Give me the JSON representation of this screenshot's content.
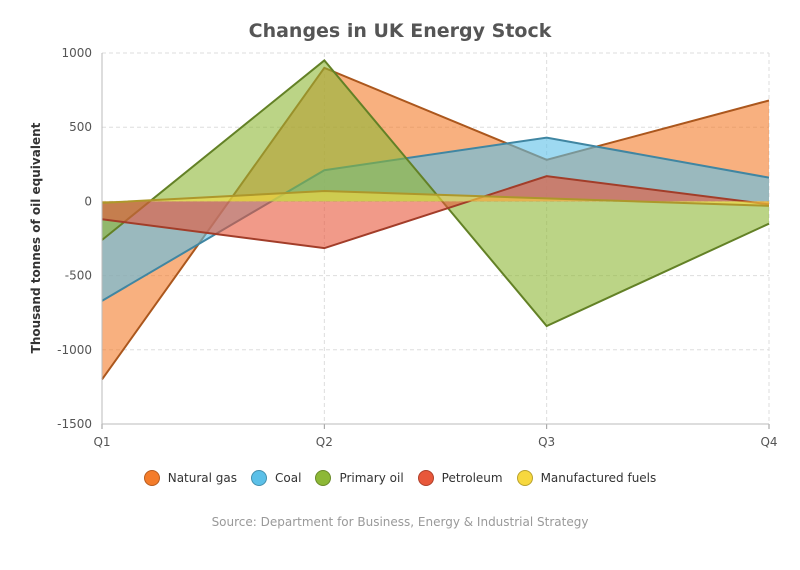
{
  "chart_data": {
    "type": "area",
    "title": "Changes in UK Energy Stock",
    "ylabel": "Thousand tonnes of oil equivalent",
    "xlabel": "",
    "categories": [
      "Q1",
      "Q2",
      "Q3",
      "Q4"
    ],
    "ylim": [
      -1500,
      1000
    ],
    "yticks": [
      1000,
      500,
      0,
      -500,
      -1000,
      -1500
    ],
    "grid": true,
    "legend_position": "bottom",
    "series": [
      {
        "name": "Natural gas",
        "values": [
          -1200,
          900,
          280,
          680
        ],
        "color": "#f47c2a"
      },
      {
        "name": "Coal",
        "values": [
          -670,
          210,
          430,
          160
        ],
        "color": "#5bc0e8"
      },
      {
        "name": "Primary oil",
        "values": [
          -260,
          950,
          -840,
          -150
        ],
        "color": "#8db836"
      },
      {
        "name": "Petroleum",
        "values": [
          -120,
          -315,
          170,
          -20
        ],
        "color": "#e8573a"
      },
      {
        "name": "Manufactured fuels",
        "values": [
          -10,
          70,
          20,
          -30
        ],
        "color": "#f7d83e"
      }
    ],
    "source": "Source: Department for Business, Energy & Industrial Strategy"
  }
}
